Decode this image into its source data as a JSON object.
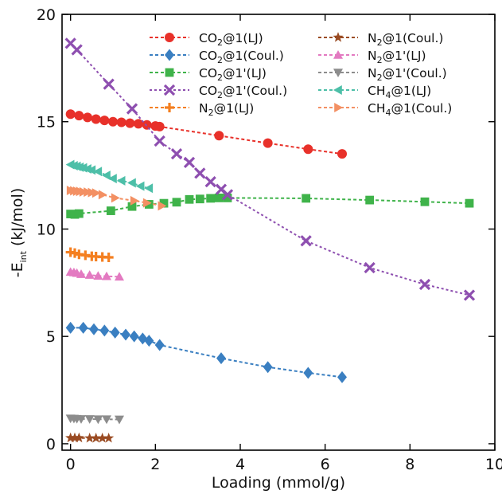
{
  "chart_data": {
    "type": "scatter",
    "xlabel": "Loading (mmol/g)",
    "ylabel": {
      "main": "-E",
      "sub": "int",
      "unit": " (kJ/mol)"
    },
    "xlim": [
      -0.2,
      10
    ],
    "ylim": [
      -0.3,
      20
    ],
    "xticks": [
      0,
      2,
      4,
      6,
      8,
      10
    ],
    "yticks": [
      0,
      5,
      10,
      15,
      20
    ],
    "grid": false,
    "legend_position": "top-right",
    "series": [
      {
        "name": "CO2@1(LJ)",
        "label": {
          "pre": "CO",
          "sub": "2",
          "post": "@1(LJ)"
        },
        "color": "#e8312a",
        "marker": "circle",
        "dash": "4,3",
        "x": [
          0.0,
          0.2,
          0.4,
          0.6,
          0.8,
          1.0,
          1.2,
          1.4,
          1.6,
          1.8,
          2.0,
          2.1,
          3.5,
          4.65,
          5.6,
          6.4
        ],
        "y": [
          15.35,
          15.28,
          15.2,
          15.12,
          15.06,
          15.0,
          14.97,
          14.93,
          14.9,
          14.85,
          14.8,
          14.77,
          14.35,
          14.0,
          13.72,
          13.5
        ]
      },
      {
        "name": "CO2@1(Coul.)",
        "label": {
          "pre": "CO",
          "sub": "2",
          "post": "@1(Coul.)"
        },
        "color": "#3a7fc1",
        "marker": "diamond",
        "dash": "4,3",
        "x": [
          0.0,
          0.3,
          0.55,
          0.8,
          1.05,
          1.3,
          1.5,
          1.7,
          1.85,
          2.1,
          3.55,
          4.65,
          5.6,
          6.4
        ],
        "y": [
          5.4,
          5.4,
          5.33,
          5.27,
          5.18,
          5.08,
          5.0,
          4.9,
          4.8,
          4.6,
          3.98,
          3.57,
          3.3,
          3.1
        ]
      },
      {
        "name": "CO2@1'(LJ)",
        "label": {
          "pre": "CO",
          "sub": "2",
          "post": "@1'(LJ)"
        },
        "color": "#3fb34a",
        "marker": "square",
        "dash": "4,3",
        "x": [
          0.0,
          0.1,
          0.2,
          0.95,
          1.45,
          1.85,
          2.2,
          2.5,
          2.8,
          3.05,
          3.3,
          3.5,
          3.7,
          5.55,
          7.05,
          8.35,
          9.4
        ],
        "y": [
          10.7,
          10.68,
          10.72,
          10.85,
          11.05,
          11.15,
          11.2,
          11.25,
          11.38,
          11.4,
          11.43,
          11.45,
          11.45,
          11.43,
          11.35,
          11.27,
          11.2
        ]
      },
      {
        "name": "CO2@1'(Coul.)",
        "label": {
          "pre": "CO",
          "sub": "2",
          "post": "@1'(Coul.)"
        },
        "color": "#8e4fb0",
        "marker": "x",
        "dash": "3,3",
        "x": [
          0.0,
          0.15,
          0.9,
          1.45,
          2.1,
          2.5,
          2.8,
          3.05,
          3.3,
          3.55,
          3.7,
          5.55,
          7.05,
          8.35,
          9.4
        ],
        "y": [
          18.65,
          18.35,
          16.75,
          15.6,
          14.1,
          13.5,
          13.1,
          12.6,
          12.2,
          11.85,
          11.6,
          9.45,
          8.2,
          7.42,
          6.92
        ]
      },
      {
        "name": "N2@1(LJ)",
        "label": {
          "pre": "N",
          "sub": "2",
          "post": "@1(LJ)"
        },
        "color": "#f47f20",
        "marker": "plus",
        "dash": "4,3",
        "x": [
          0.0,
          0.1,
          0.2,
          0.35,
          0.5,
          0.6,
          0.75,
          0.9
        ],
        "y": [
          8.92,
          8.88,
          8.82,
          8.78,
          8.73,
          8.72,
          8.7,
          8.68
        ]
      },
      {
        "name": "N2@1(Coul.)",
        "label": {
          "pre": "N",
          "sub": "2",
          "post": "@1(Coul.)"
        },
        "color": "#9a4b22",
        "marker": "star",
        "dash": "4,3",
        "x": [
          0.0,
          0.1,
          0.2,
          0.45,
          0.6,
          0.75,
          0.9
        ],
        "y": [
          0.27,
          0.27,
          0.27,
          0.26,
          0.26,
          0.26,
          0.26
        ]
      },
      {
        "name": "N2@1'(LJ)",
        "label": {
          "pre": "N",
          "sub": "2",
          "post": "@1'(LJ)"
        },
        "color": "#e37ac1",
        "marker": "triangle-up",
        "dash": "4,3",
        "x": [
          0.0,
          0.08,
          0.15,
          0.25,
          0.45,
          0.65,
          0.85,
          1.15
        ],
        "y": [
          8.0,
          7.98,
          7.95,
          7.9,
          7.86,
          7.82,
          7.8,
          7.78
        ]
      },
      {
        "name": "N2@1'(Coul.)",
        "label": {
          "pre": "N",
          "sub": "2",
          "post": "@1'(Coul.)"
        },
        "color": "#8c8c8c",
        "marker": "triangle-down",
        "dash": "4,3",
        "x": [
          0.0,
          0.08,
          0.15,
          0.25,
          0.45,
          0.65,
          0.85,
          1.15
        ],
        "y": [
          1.18,
          1.17,
          1.16,
          1.15,
          1.15,
          1.14,
          1.14,
          1.13
        ]
      },
      {
        "name": "CH4@1(LJ)",
        "label": {
          "pre": "CH",
          "sub": "4",
          "post": "@1(LJ)"
        },
        "color": "#4dbfa8",
        "marker": "triangle-left",
        "dash": "4,3",
        "x": [
          0.0,
          0.08,
          0.15,
          0.22,
          0.3,
          0.4,
          0.5,
          0.65,
          0.85,
          1.0,
          1.2,
          1.45,
          1.65,
          1.85
        ],
        "y": [
          13.0,
          12.95,
          12.92,
          12.88,
          12.85,
          12.8,
          12.75,
          12.68,
          12.5,
          12.35,
          12.25,
          12.15,
          12.0,
          11.9
        ]
      },
      {
        "name": "CH4@1(Coul.)",
        "label": {
          "pre": "CH",
          "sub": "4",
          "post": "@1(Coul.)"
        },
        "color": "#f39063",
        "marker": "triangle-right",
        "dash": "4,3",
        "x": [
          0.0,
          0.08,
          0.15,
          0.22,
          0.3,
          0.4,
          0.5,
          0.6,
          0.75,
          1.05,
          1.5,
          1.8,
          2.15
        ],
        "y": [
          11.8,
          11.78,
          11.76,
          11.75,
          11.73,
          11.72,
          11.7,
          11.68,
          11.6,
          11.45,
          11.32,
          11.22,
          11.08
        ]
      }
    ]
  }
}
